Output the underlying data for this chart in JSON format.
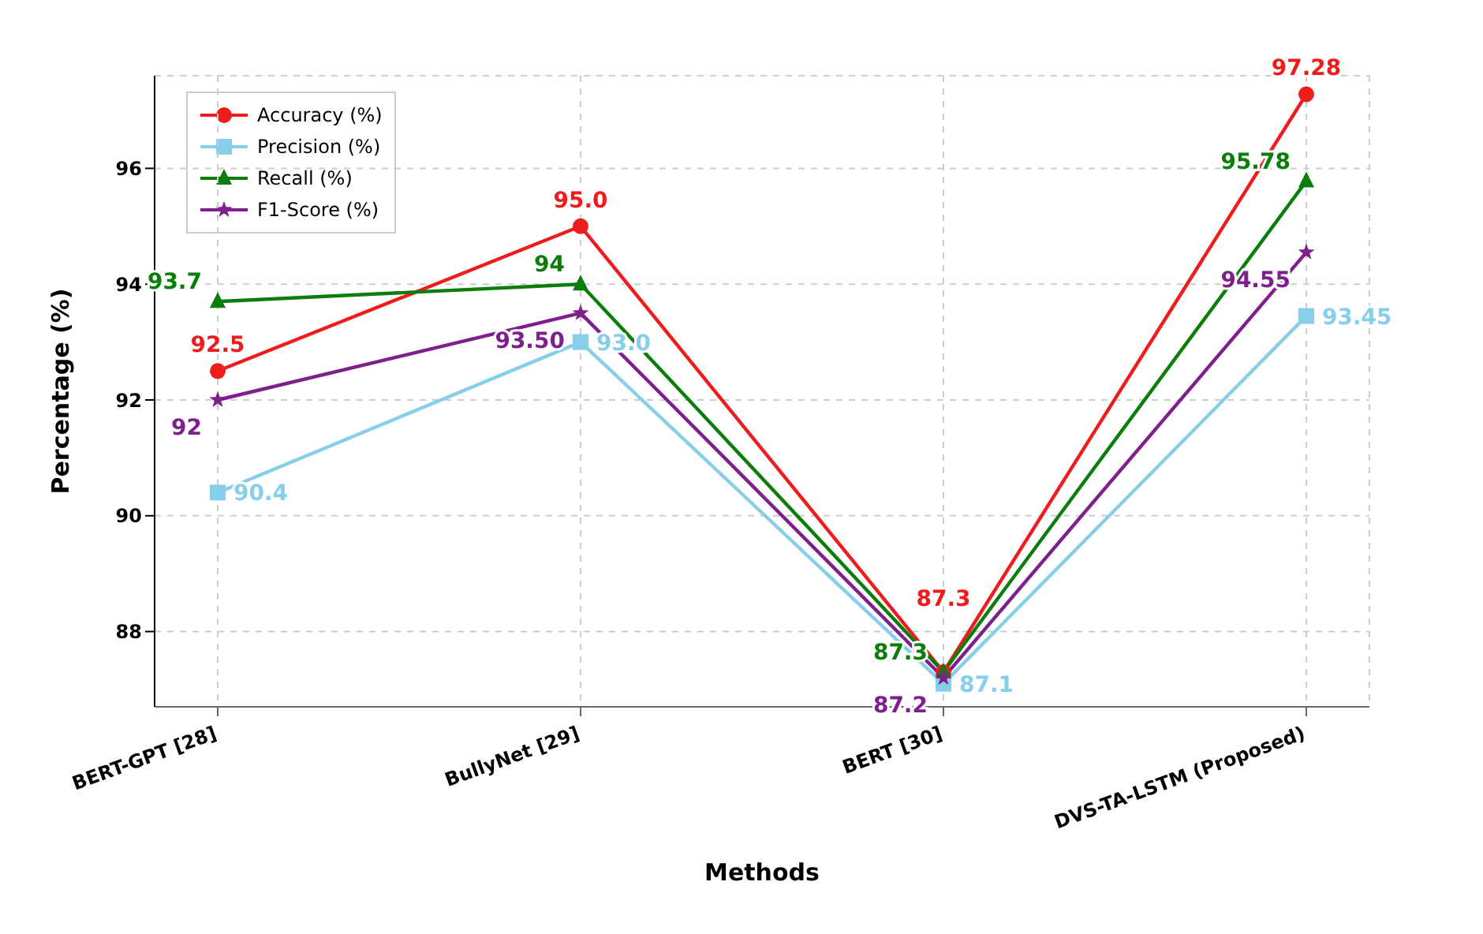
{
  "chart_data": {
    "type": "line",
    "xlabel": "Methods",
    "ylabel": "Percentage (%)",
    "categories": [
      "BERT-GPT [28]",
      "BullyNet [29]",
      "BERT [30]",
      "DVS-TA-LSTM (Proposed)"
    ],
    "series": [
      {
        "name": "Accuracy (%)",
        "color": "#ee1c1c",
        "marker": "circle",
        "values": [
          92.5,
          95.0,
          87.3,
          97.28
        ],
        "value_labels": [
          "92.5",
          "95.0",
          "87.3",
          "97.28"
        ]
      },
      {
        "name": "Precision (%)",
        "color": "#87ceeb",
        "marker": "square",
        "values": [
          90.4,
          93.0,
          87.1,
          93.45
        ],
        "value_labels": [
          "90.4",
          "93.0",
          "87.1",
          "93.45"
        ]
      },
      {
        "name": "Recall (%)",
        "color": "#0a7d0a",
        "marker": "triangle",
        "values": [
          93.7,
          94,
          87.3,
          95.78
        ],
        "value_labels": [
          "93.7",
          "94",
          "87.3",
          "95.78"
        ]
      },
      {
        "name": "F1-Score (%)",
        "color": "#7f1f8c",
        "marker": "star",
        "values": [
          92,
          93.5,
          87.2,
          94.55
        ],
        "value_labels": [
          "92",
          "93.50",
          "87.2",
          "94.55"
        ]
      }
    ],
    "ylim": [
      86.7,
      97.6
    ],
    "yticks": [
      88,
      90,
      92,
      94,
      96
    ],
    "grid": true,
    "legend": "top left",
    "line_style": "solid"
  }
}
